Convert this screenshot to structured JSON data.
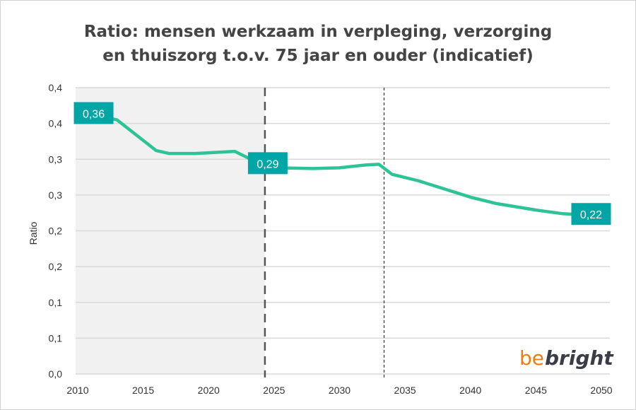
{
  "chart_data": {
    "type": "line",
    "title": "Ratio: mensen werkzaam in verpleging, verzorging en thuiszorg t.o.v. 75 jaar en ouder  (indicatief)",
    "title_lines": [
      "Ratio: mensen werkzaam in verpleging, verzorging",
      "en thuiszorg t.o.v. 75 jaar en ouder  (indicatief)"
    ],
    "xlabel": "",
    "ylabel": "Ratio",
    "xlim": [
      2010,
      2050
    ],
    "ylim": [
      0,
      0.4
    ],
    "x_ticks": [
      "2010",
      "2015",
      "2020",
      "2025",
      "2030",
      "2035",
      "2040",
      "2045",
      "2050"
    ],
    "x_tick_values": [
      2010,
      2015,
      2020,
      2025,
      2030,
      2035,
      2040,
      2045,
      2050
    ],
    "y_ticks": [
      "0,0",
      "0,1",
      "0,1",
      "0,2",
      "0,2",
      "0,3",
      "0,3",
      "0,4",
      "0,4"
    ],
    "y_tick_values": [
      0,
      0.05,
      0.1,
      0.15,
      0.2,
      0.25,
      0.3,
      0.35,
      0.4
    ],
    "grid": true,
    "shaded_region": [
      2010,
      2024.3
    ],
    "vlines": [
      {
        "x": 2024.3,
        "style": "dashed"
      },
      {
        "x": 2033.4,
        "style": "dotted"
      }
    ],
    "series": [
      {
        "color": "#2ec397",
        "x": [
          2011,
          2013,
          2016,
          2017,
          2019,
          2021,
          2022,
          2024,
          2025,
          2028,
          2030,
          2032,
          2033,
          2034,
          2036,
          2040,
          2042,
          2045,
          2047,
          2049
        ],
        "y": [
          0.363,
          0.355,
          0.312,
          0.308,
          0.308,
          0.31,
          0.311,
          0.293,
          0.288,
          0.287,
          0.288,
          0.292,
          0.293,
          0.279,
          0.27,
          0.247,
          0.238,
          0.229,
          0.224,
          0.222
        ]
      }
    ],
    "data_labels": [
      {
        "x": 2011,
        "y": 0.363,
        "text": "0,36"
      },
      {
        "x": 2024.3,
        "y": 0.293,
        "text": "0,29"
      },
      {
        "x": 2049,
        "y": 0.222,
        "text": "0,22"
      }
    ],
    "label_color": "#00a6a6",
    "shade_color": "#f1f1f1"
  },
  "logo": {
    "part1": "be",
    "part2": "bright",
    "color1": "#ee7d11",
    "color2": "#3a3d45"
  }
}
